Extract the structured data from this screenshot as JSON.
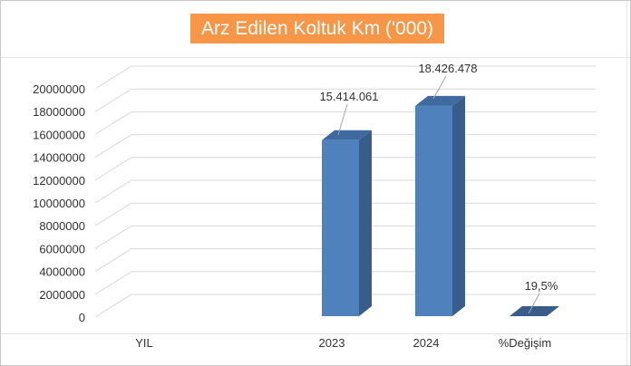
{
  "chart_data": {
    "type": "bar",
    "style": "3d-column",
    "title": "Arz Edilen Koltuk Km ('000)",
    "categories": [
      "YIL",
      "2023",
      "2024",
      "%Değişim"
    ],
    "values": [
      0,
      15414061,
      18426478,
      19.5
    ],
    "data_labels": [
      "",
      "15.414.061",
      "18.426.478",
      "19,5%"
    ],
    "ylim": [
      0,
      20000000
    ],
    "yticks": [
      0,
      2000000,
      4000000,
      6000000,
      8000000,
      10000000,
      12000000,
      14000000,
      16000000,
      18000000,
      20000000
    ],
    "ytick_labels": [
      "0",
      "2000000",
      "4000000",
      "6000000",
      "8000000",
      "10000000",
      "12000000",
      "14000000",
      "16000000",
      "18000000",
      "20000000"
    ],
    "xlabel": "",
    "ylabel": "",
    "grid": true,
    "legend": "none",
    "colors": {
      "bar_front": "#4f81bd",
      "bar_side": "#385d8a",
      "bar_top": "#3e6aa0",
      "title_bg": "#f79646",
      "title_text": "#ffffff",
      "gridline": "#d9d9d9"
    }
  }
}
